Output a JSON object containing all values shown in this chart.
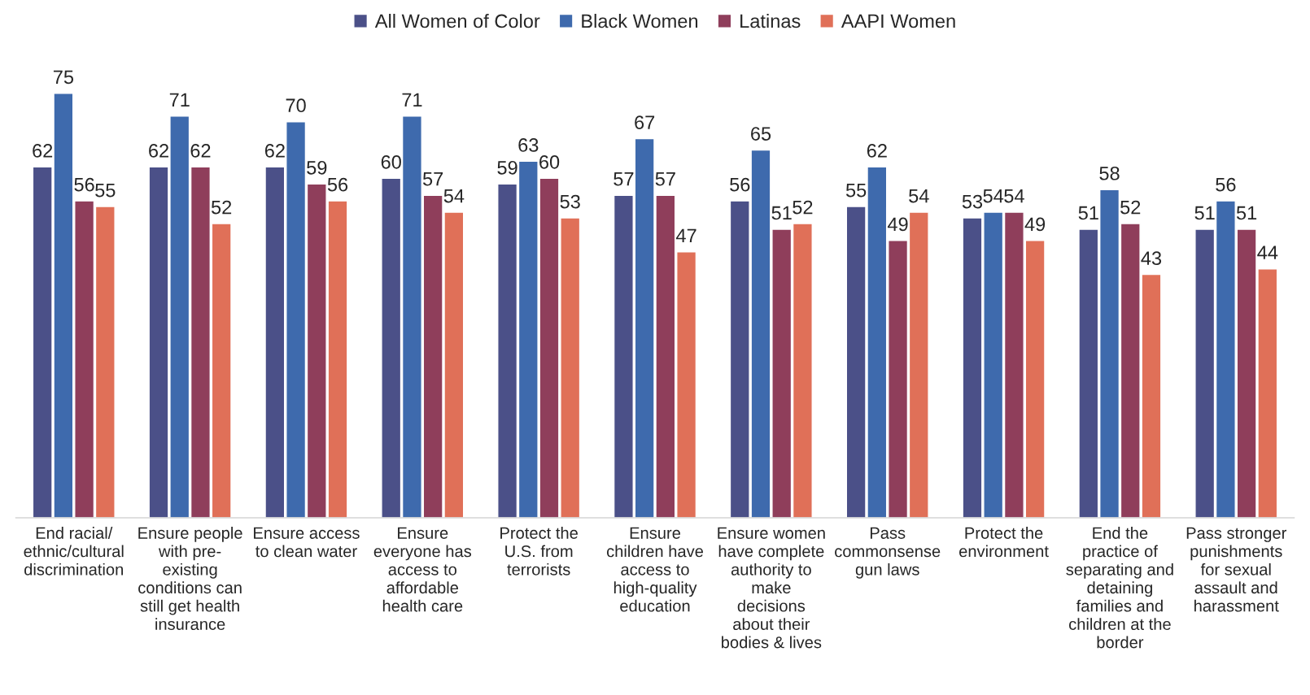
{
  "chart_data": {
    "type": "bar",
    "categories": [
      "End racial/\nethnic/cultural\ndiscrimination",
      "Ensure people\nwith pre-\nexisting\nconditions can\nstill get health\ninsurance",
      "Ensure access\nto clean water",
      "Ensure\neveryone has\naccess to\naffordable\nhealth care",
      "Protect the\nU.S. from\nterrorists",
      "Ensure\nchildren have\naccess to\nhigh-quality\neducation",
      "Ensure women\nhave complete\nauthority to\nmake\ndecisions\nabout their\nbodies & lives",
      "Pass\ncommonsense\ngun laws",
      "Protect the\nenvironment",
      "End the\npractice of\nseparating and\ndetaining\nfamilies and\nchildren at the\nborder",
      "Pass stronger\npunishments\nfor sexual\nassault and\nharassment"
    ],
    "series": [
      {
        "name": "All Women of Color",
        "color": "#4b5088",
        "values": [
          62,
          62,
          62,
          60,
          59,
          57,
          56,
          55,
          53,
          51,
          51
        ]
      },
      {
        "name": "Black Women",
        "color": "#3e6aad",
        "values": [
          75,
          71,
          70,
          71,
          63,
          67,
          65,
          62,
          54,
          58,
          56
        ]
      },
      {
        "name": "Latinas",
        "color": "#8f3e5b",
        "values": [
          56,
          62,
          59,
          57,
          60,
          57,
          51,
          49,
          54,
          52,
          51
        ]
      },
      {
        "name": "AAPI Women",
        "color": "#e07058",
        "values": [
          55,
          52,
          56,
          54,
          53,
          47,
          52,
          54,
          49,
          43,
          44
        ]
      }
    ],
    "data_labels": true,
    "legend": "top",
    "grid": false
  }
}
